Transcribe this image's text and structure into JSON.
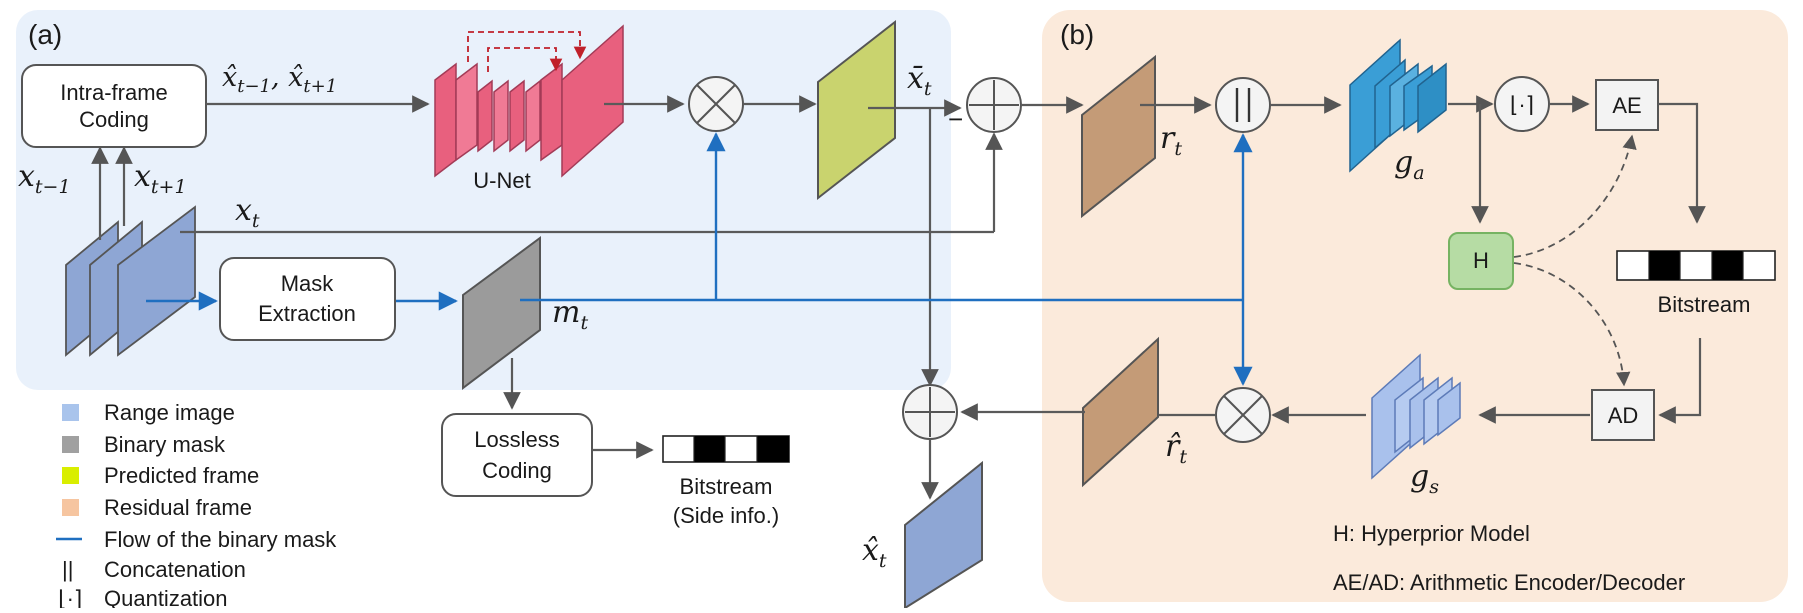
{
  "panels": {
    "a_label": "(a)",
    "b_label": "(b)"
  },
  "blocks": {
    "intra_line1": "Intra-frame",
    "intra_line2": "Coding",
    "unet": "U-Net",
    "mask_line1": "Mask",
    "mask_line2": "Extraction",
    "lossless_line1": "Lossless",
    "lossless_line2": "Coding",
    "ae": "AE",
    "ad": "AD",
    "h": "H",
    "bitstream_b": "Bitstream",
    "bitstream_side1": "Bitstream",
    "bitstream_side2": "(Side info.)",
    "quant_symbol": "⌊·⌉",
    "concat_symbol": "||",
    "minus": "−"
  },
  "math": {
    "xhat_prev_next": "x̂t−1, x̂t+1",
    "x_prev": "xt−1",
    "x_next": "xt+1",
    "x_t": "xt",
    "m_t": "mt",
    "xbar_t": "x̄t",
    "r_t": "rt",
    "rhat_t": "r̂t",
    "xhat_t": "x̂t",
    "g_a": "ga",
    "g_s": "gs"
  },
  "legend": [
    {
      "label": "Range image",
      "color": "#a9c4ec",
      "kind": "swatch"
    },
    {
      "label": "Binary mask",
      "color": "#a0a0a0",
      "kind": "swatch"
    },
    {
      "label": "Predicted frame",
      "color": "#d9ee00",
      "kind": "swatch"
    },
    {
      "label": "Residual frame",
      "color": "#f6c5a0",
      "kind": "swatch"
    },
    {
      "label": "Flow of the binary mask",
      "color": "#1f6fc0",
      "kind": "line"
    },
    {
      "label": "Concatenation",
      "symbol": "||",
      "kind": "symbol"
    },
    {
      "label": "Quantization",
      "symbol": "⌊·⌉",
      "kind": "symbol"
    }
  ],
  "notes": {
    "h_note": "H: Hyperprior Model",
    "aead_note": "AE/AD: Arithmetic Encoder/Decoder"
  },
  "colors": {
    "panel_a_bg": "#e9f1fb",
    "panel_b_bg": "#fbeadb",
    "range_image": "#8ea6d4",
    "binary_mask": "#9b9b9b",
    "predicted": "#c9d36e",
    "residual": "#c49b77",
    "unet": "#e8607e",
    "encoder": "#3a9ed6",
    "decoder": "#a9c1ec",
    "hyper": "#b6dca4",
    "flow": "#1f6fc0"
  }
}
